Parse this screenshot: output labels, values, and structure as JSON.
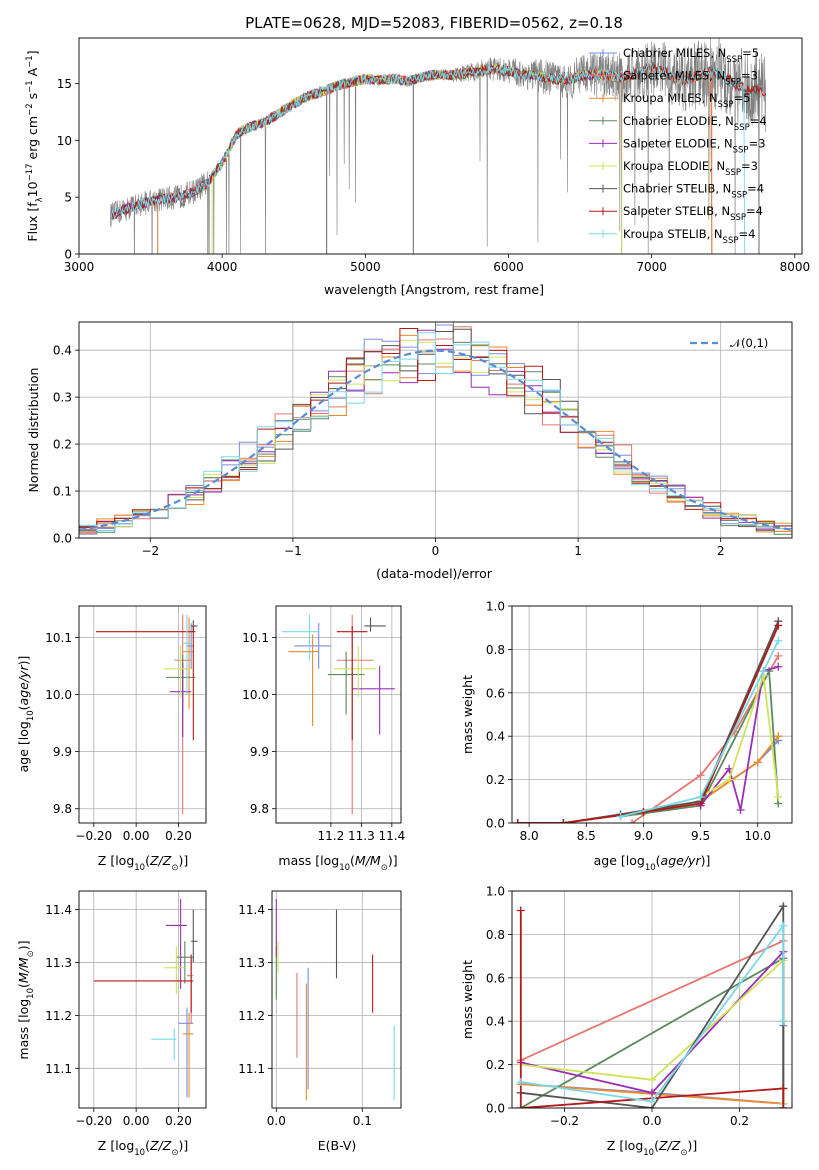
{
  "figure_title": "PLATE=0628, MJD=52083, FIBERID=0562, z=0.18",
  "models": [
    {
      "name": "Chabrier MILES",
      "nssp": "5",
      "color": "#7b8be0"
    },
    {
      "name": "Salpeter MILES",
      "nssp": "3",
      "color": "#e8776f"
    },
    {
      "name": "Kroupa MILES",
      "nssp": "5",
      "color": "#ee8a2b"
    },
    {
      "name": "Chabrier ELODIE",
      "nssp": "4",
      "color": "#5a8a5c"
    },
    {
      "name": "Salpeter ELODIE",
      "nssp": "3",
      "color": "#9a2fb5"
    },
    {
      "name": "Kroupa ELODIE",
      "nssp": "3",
      "color": "#cfe35a"
    },
    {
      "name": "Chabrier STELIB",
      "nssp": "4",
      "color": "#555555"
    },
    {
      "name": "Salpeter STELIB",
      "nssp": "4",
      "color": "#b51818"
    },
    {
      "name": "Kroupa STELIB",
      "nssp": "4",
      "color": "#78d9e6"
    }
  ],
  "extra_colors": {
    "pink": "#e67fb8",
    "data": "#808080",
    "normal": "#5b8ad6"
  },
  "chart_data": [
    {
      "id": "spectrum",
      "type": "line",
      "title": "PLATE=0628, MJD=52083, FIBERID=0562, z=0.18",
      "xlabel": "wavelength [Angstrom, rest frame]",
      "ylabel": "Flux [f_λ10^-17 erg cm^-2 s^-1 A^-1]",
      "xlim": [
        3000,
        8050
      ],
      "ylim": [
        0,
        19
      ],
      "xticks": [
        3000,
        4000,
        5000,
        6000,
        7000,
        8000
      ],
      "yticks": [
        0,
        5,
        10,
        15
      ],
      "legend_loc": "upper right",
      "continuum": [
        [
          3220,
          3.4
        ],
        [
          3400,
          4.3
        ],
        [
          3550,
          4.8
        ],
        [
          3700,
          5.0
        ],
        [
          3820,
          5.6
        ],
        [
          3900,
          6.3
        ],
        [
          4000,
          8.0
        ],
        [
          4100,
          10.5
        ],
        [
          4200,
          11.2
        ],
        [
          4300,
          11.6
        ],
        [
          4400,
          12.4
        ],
        [
          4500,
          13.2
        ],
        [
          4600,
          13.9
        ],
        [
          4700,
          14.3
        ],
        [
          4800,
          14.8
        ],
        [
          4900,
          15.1
        ],
        [
          5000,
          15.4
        ],
        [
          5100,
          15.3
        ],
        [
          5200,
          15.4
        ],
        [
          5300,
          15.2
        ],
        [
          5400,
          15.6
        ],
        [
          5500,
          15.8
        ],
        [
          5600,
          15.7
        ],
        [
          5700,
          15.9
        ],
        [
          5800,
          16.1
        ],
        [
          5900,
          16.3
        ],
        [
          6000,
          16.1
        ],
        [
          6100,
          15.8
        ],
        [
          6200,
          15.7
        ],
        [
          6300,
          15.4
        ],
        [
          6400,
          15.3
        ],
        [
          6500,
          15.6
        ],
        [
          6600,
          15.8
        ],
        [
          6700,
          15.7
        ],
        [
          6800,
          15.5
        ],
        [
          6900,
          15.9
        ],
        [
          7000,
          16.4
        ],
        [
          7100,
          15.9
        ],
        [
          7200,
          15.2
        ],
        [
          7300,
          15.6
        ],
        [
          7400,
          16.1
        ],
        [
          7500,
          15.7
        ],
        [
          7600,
          14.8
        ],
        [
          7700,
          14.5
        ],
        [
          7800,
          14.2
        ]
      ]
    },
    {
      "id": "residuals",
      "type": "line",
      "xlabel": "(data-model)/error",
      "ylabel": "Normed distribution",
      "xlim": [
        -2.5,
        2.5
      ],
      "ylim": [
        0,
        0.46
      ],
      "xticks": [
        -2,
        -1,
        0,
        1,
        2
      ],
      "yticks": [
        0.0,
        0.1,
        0.2,
        0.3,
        0.4
      ],
      "legend": [
        "𝒩(0,1)"
      ],
      "legend_loc": "upper right",
      "bins": 40
    },
    {
      "id": "age-Z",
      "type": "scatter",
      "xlabel": "Z [log10(Z/Z☉)]",
      "ylabel": "age [log10(age/yr)]",
      "xlim": [
        -0.27,
        0.33
      ],
      "ylim": [
        9.775,
        10.155
      ],
      "xticks": [
        -0.2,
        0.0,
        0.2
      ],
      "yticks": [
        9.8,
        9.9,
        10.0,
        10.1
      ],
      "points": [
        {
          "model": 0,
          "x": 0.26,
          "xerr": [
            0.02,
            0.01
          ],
          "y": 10.085,
          "yerr": [
            0.04,
            0.04
          ]
        },
        {
          "model": 1,
          "x": 0.22,
          "xerr": [
            0.04,
            0.04
          ],
          "y": 10.06,
          "yerr": [
            0.27,
            0.08
          ]
        },
        {
          "model": 2,
          "x": 0.25,
          "xerr": [
            0.03,
            0.02
          ],
          "y": 10.075,
          "yerr": [
            0.1,
            0.06
          ]
        },
        {
          "model": 3,
          "x": 0.22,
          "xerr": [
            0.08,
            0.06
          ],
          "y": 10.03,
          "yerr": [
            0.06,
            0.04
          ]
        },
        {
          "model": 4,
          "x": 0.22,
          "xerr": [
            0.06,
            0.04
          ],
          "y": 10.005,
          "yerr": [
            0.08,
            0.05
          ]
        },
        {
          "model": 5,
          "x": 0.21,
          "xerr": [
            0.08,
            0.05
          ],
          "y": 10.045,
          "yerr": [
            0.05,
            0.04
          ]
        },
        {
          "model": 6,
          "x": 0.27,
          "xerr": [
            0.01,
            0.02
          ],
          "y": 10.12,
          "yerr": [
            0.01,
            0.01
          ]
        },
        {
          "model": 7,
          "x": 0.27,
          "xerr": [
            0.46,
            0.01
          ],
          "y": 10.11,
          "yerr": [
            0.19,
            0.01
          ]
        },
        {
          "model": 8,
          "x": 0.24,
          "xerr": [
            0.02,
            0.02
          ],
          "y": 10.09,
          "yerr": [
            0.09,
            0.05
          ]
        }
      ]
    },
    {
      "id": "age-mass",
      "type": "scatter",
      "xlabel": "mass [log10(M/M☉)]",
      "ylabel": "",
      "xlim": [
        11.02,
        11.43
      ],
      "ylim": [
        9.775,
        10.155
      ],
      "xticks": [
        11.2,
        11.3,
        11.4
      ],
      "yticks": [
        9.8,
        9.9,
        10.0,
        10.1
      ],
      "points": [
        {
          "model": 0,
          "x": 11.16,
          "xerr": [
            0.08,
            0.04
          ],
          "y": 10.085,
          "yerr": [
            0.04,
            0.04
          ]
        },
        {
          "model": 1,
          "x": 11.27,
          "xerr": [
            0.05,
            0.07
          ],
          "y": 10.06,
          "yerr": [
            0.27,
            0.08
          ]
        },
        {
          "model": 2,
          "x": 11.14,
          "xerr": [
            0.08,
            0.02
          ],
          "y": 10.075,
          "yerr": [
            0.13,
            0.03
          ]
        },
        {
          "model": 3,
          "x": 11.25,
          "xerr": [
            0.06,
            0.06
          ],
          "y": 10.035,
          "yerr": [
            0.07,
            0.04
          ]
        },
        {
          "model": 4,
          "x": 11.36,
          "xerr": [
            0.09,
            0.05
          ],
          "y": 10.01,
          "yerr": [
            0.08,
            0.04
          ]
        },
        {
          "model": 5,
          "x": 11.29,
          "xerr": [
            0.08,
            0.06
          ],
          "y": 10.045,
          "yerr": [
            0.05,
            0.04
          ]
        },
        {
          "model": 6,
          "x": 11.33,
          "xerr": [
            0.02,
            0.05
          ],
          "y": 10.12,
          "yerr": [
            0.01,
            0.015
          ]
        },
        {
          "model": 7,
          "x": 11.27,
          "xerr": [
            0.05,
            0.05
          ],
          "y": 10.11,
          "yerr": [
            0.19,
            0.01
          ]
        },
        {
          "model": 8,
          "x": 11.13,
          "xerr": [
            0.09,
            0.03
          ],
          "y": 10.11,
          "yerr": [
            0.05,
            0.03
          ]
        }
      ]
    },
    {
      "id": "weight-age",
      "type": "line",
      "xlabel": "age [log10(age/yr)]",
      "ylabel": "mass weight",
      "xlim": [
        7.85,
        10.3
      ],
      "ylim": [
        0,
        1.0
      ],
      "xticks": [
        8.0,
        8.5,
        9.0,
        9.5,
        10.0
      ],
      "yticks": [
        0.0,
        0.2,
        0.4,
        0.6,
        0.8,
        1.0
      ],
      "series": [
        {
          "model": 0,
          "x": [
            8.3,
            9.0,
            9.5,
            10.0,
            10.18
          ],
          "y": [
            0.0,
            0.05,
            0.1,
            0.28,
            0.38
          ]
        },
        {
          "model": 1,
          "x": [
            8.9,
            9.5,
            9.8,
            10.18
          ],
          "y": [
            0.0,
            0.22,
            0.42,
            0.77
          ]
        },
        {
          "model": 2,
          "x": [
            8.3,
            9.0,
            9.5,
            10.0,
            10.18
          ],
          "y": [
            0.0,
            0.05,
            0.1,
            0.28,
            0.4
          ]
        },
        {
          "model": 3,
          "x": [
            8.8,
            9.5,
            10.1,
            10.18
          ],
          "y": [
            0.03,
            0.08,
            0.7,
            0.09
          ]
        },
        {
          "model": 4,
          "x": [
            9.5,
            9.75,
            9.85,
            10.05,
            10.18
          ],
          "y": [
            0.08,
            0.25,
            0.06,
            0.7,
            0.72
          ]
        },
        {
          "model": 5,
          "x": [
            9.5,
            9.75,
            10.05,
            10.18
          ],
          "y": [
            0.12,
            0.2,
            0.68,
            0.12
          ]
        },
        {
          "model": 6,
          "x": [
            7.9,
            8.3,
            8.8,
            9.5,
            10.18
          ],
          "y": [
            0.0,
            0.0,
            0.04,
            0.1,
            0.93
          ]
        },
        {
          "model": 7,
          "x": [
            7.9,
            8.3,
            9.0,
            9.5,
            10.18
          ],
          "y": [
            0.0,
            0.0,
            0.05,
            0.09,
            0.91
          ]
        },
        {
          "model": 8,
          "x": [
            8.8,
            9.5,
            10.05,
            10.18
          ],
          "y": [
            0.03,
            0.12,
            0.7,
            0.84
          ]
        }
      ]
    },
    {
      "id": "mass-Z",
      "type": "scatter",
      "xlabel": "Z [log10(Z/Z☉)]",
      "ylabel": "mass [log10(M/M☉)]",
      "xlim": [
        -0.27,
        0.33
      ],
      "ylim": [
        11.025,
        11.435
      ],
      "xticks": [
        -0.2,
        0.0,
        0.2
      ],
      "yticks": [
        11.1,
        11.2,
        11.3,
        11.4
      ],
      "points": [
        {
          "model": 0,
          "x": 0.24,
          "xerr": [
            0.04,
            0.03
          ],
          "y": 11.185,
          "yerr": [
            0.14,
            0.03
          ]
        },
        {
          "model": 1,
          "x": 0.26,
          "xerr": [
            0.02,
            0.01
          ],
          "y": 11.275,
          "yerr": [
            0.09,
            0.03
          ]
        },
        {
          "model": 2,
          "x": 0.25,
          "xerr": [
            0.03,
            0.02
          ],
          "y": 11.165,
          "yerr": [
            0.12,
            0.04
          ]
        },
        {
          "model": 3,
          "x": 0.23,
          "xerr": [
            0.04,
            0.04
          ],
          "y": 11.31,
          "yerr": [
            0.05,
            0.03
          ]
        },
        {
          "model": 4,
          "x": 0.21,
          "xerr": [
            0.07,
            0.03
          ],
          "y": 11.37,
          "yerr": [
            0.12,
            0.05
          ]
        },
        {
          "model": 5,
          "x": 0.19,
          "xerr": [
            0.06,
            0.04
          ],
          "y": 11.29,
          "yerr": [
            0.05,
            0.04
          ]
        },
        {
          "model": 6,
          "x": 0.27,
          "xerr": [
            0.01,
            0.02
          ],
          "y": 11.34,
          "yerr": [
            0.04,
            0.06
          ]
        },
        {
          "model": 7,
          "x": 0.26,
          "xerr": [
            0.46,
            0.01
          ],
          "y": 11.265,
          "yerr": [
            0.06,
            0.05
          ]
        },
        {
          "model": 8,
          "x": 0.18,
          "xerr": [
            0.11,
            0.01
          ],
          "y": 11.155,
          "yerr": [
            0.04,
            0.02
          ]
        }
      ]
    },
    {
      "id": "mass-ebv",
      "type": "scatter",
      "xlabel": "E(B-V)",
      "ylabel": "",
      "xlim": [
        -0.005,
        0.145
      ],
      "ylim": [
        11.025,
        11.435
      ],
      "xticks": [
        0.0,
        0.1
      ],
      "yticks": [
        11.1,
        11.2,
        11.3,
        11.4
      ],
      "points": [
        {
          "model": 0,
          "x": 0.037,
          "y": 11.17,
          "yerr": [
            0.11,
            0.12
          ]
        },
        {
          "model": 1,
          "x": 0.024,
          "y": 11.2,
          "yerr": [
            0.08,
            0.08
          ]
        },
        {
          "model": 2,
          "x": 0.035,
          "y": 11.15,
          "yerr": [
            0.11,
            0.11
          ]
        },
        {
          "model": 3,
          "x": 0.0,
          "y": 11.28,
          "yerr": [
            0.05,
            0.05
          ]
        },
        {
          "model": 4,
          "x": 0.0,
          "y": 11.36,
          "yerr": [
            0.05,
            0.06
          ]
        },
        {
          "model": 5,
          "x": 0.002,
          "y": 11.31,
          "yerr": [
            0.03,
            0.03
          ]
        },
        {
          "model": 6,
          "x": 0.07,
          "y": 11.335,
          "yerr": [
            0.065,
            0.065
          ]
        },
        {
          "model": 7,
          "x": 0.112,
          "y": 11.26,
          "yerr": [
            0.055,
            0.055
          ]
        },
        {
          "model": 8,
          "x": 0.137,
          "y": 11.11,
          "yerr": [
            0.07,
            0.07
          ]
        }
      ]
    },
    {
      "id": "weight-Z",
      "type": "line",
      "xlabel": "Z [log10(Z/Z☉)]",
      "ylabel": "mass weight",
      "xlim": [
        -0.32,
        0.32
      ],
      "ylim": [
        0,
        1.0
      ],
      "xticks": [
        -0.2,
        0.0,
        0.2
      ],
      "yticks": [
        0.0,
        0.2,
        0.4,
        0.6,
        0.8,
        1.0
      ],
      "series": [
        {
          "model": 0,
          "x": [
            -0.3,
            0.0,
            0.3,
            0.3
          ],
          "y": [
            0.11,
            0.07,
            0.02,
            0.38
          ]
        },
        {
          "model": 1,
          "x": [
            -0.3,
            0.3
          ],
          "y": [
            0.22,
            0.77
          ]
        },
        {
          "model": 2,
          "x": [
            -0.3,
            0.3,
            0.3
          ],
          "y": [
            0.11,
            0.02,
            0.4
          ]
        },
        {
          "model": 3,
          "x": [
            -0.3,
            0.3,
            0.3
          ],
          "y": [
            0.0,
            0.69,
            0.09
          ]
        },
        {
          "model": 4,
          "x": [
            -0.3,
            0.0,
            0.3,
            0.3
          ],
          "y": [
            0.21,
            0.07,
            0.72,
            0.02
          ]
        },
        {
          "model": 5,
          "x": [
            -0.3,
            0.0,
            0.3,
            0.3
          ],
          "y": [
            0.2,
            0.13,
            0.68,
            0.02
          ]
        },
        {
          "model": 6,
          "x": [
            -0.3,
            0.0,
            0.3,
            0.3
          ],
          "y": [
            0.07,
            0.0,
            0.93,
            0.0
          ]
        },
        {
          "model": 7,
          "x": [
            -0.3,
            -0.3,
            0.3,
            0.3
          ],
          "y": [
            0.91,
            0.0,
            0.09,
            0.0
          ]
        },
        {
          "model": 8,
          "x": [
            -0.3,
            0.0,
            0.3,
            0.3
          ],
          "y": [
            0.12,
            0.03,
            0.84,
            0.4
          ]
        }
      ]
    }
  ]
}
